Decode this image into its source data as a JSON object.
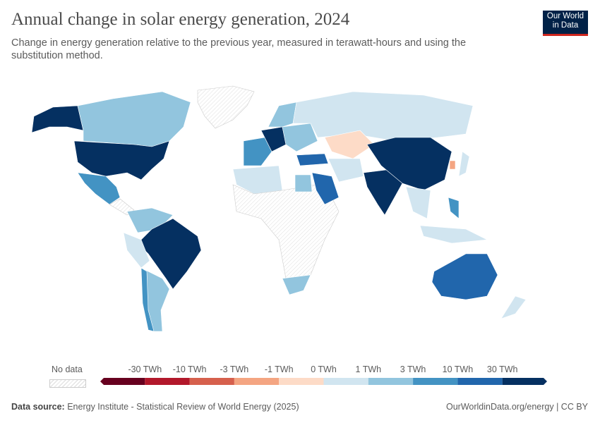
{
  "header": {
    "title": "Annual change in solar energy generation, 2024",
    "subtitle": "Change in energy generation relative to the previous year, measured in terawatt-hours and using the substitution method.",
    "logo_line1": "Our World",
    "logo_line2": "in Data"
  },
  "legend": {
    "no_data_label": "No data",
    "ticks": [
      "-30 TWh",
      "-10 TWh",
      "-3 TWh",
      "-1 TWh",
      "0 TWh",
      "1 TWh",
      "3 TWh",
      "10 TWh",
      "30 TWh"
    ],
    "colors": [
      "#67001f",
      "#b2182b",
      "#d6604d",
      "#f4a582",
      "#fddbc7",
      "#d1e5f0",
      "#92c5de",
      "#4393c3",
      "#2166ac",
      "#053061"
    ],
    "no_data_color": "#eeeeee"
  },
  "footer": {
    "source_label": "Data source:",
    "source": "Energy Institute - Statistical Review of World Energy (2025)",
    "link": "OurWorldinData.org/energy | CC BY"
  }
}
